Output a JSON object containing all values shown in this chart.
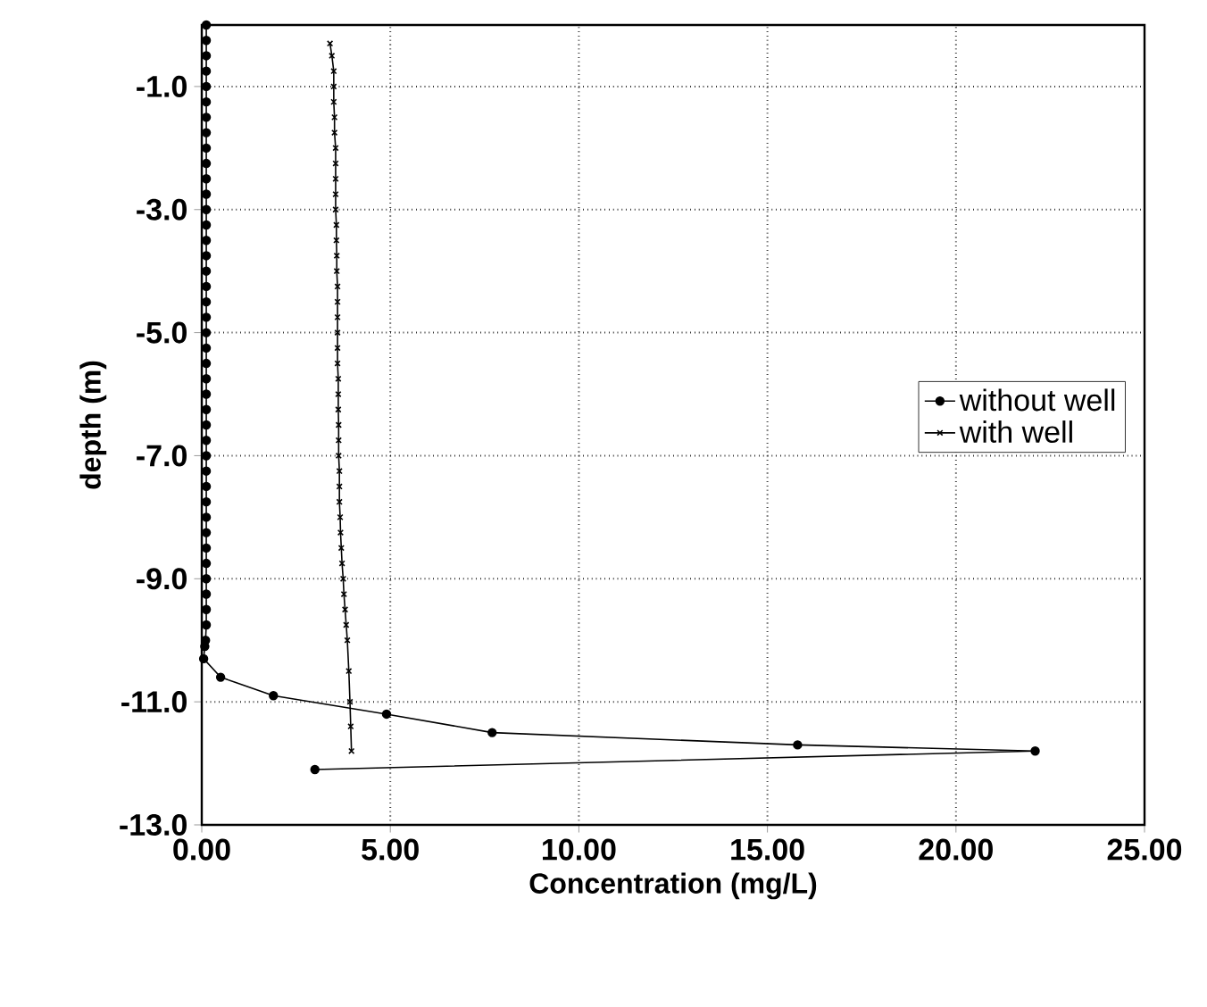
{
  "chart_data": {
    "type": "line",
    "xlabel": "Concentration (mg/L)",
    "ylabel": "depth (m)",
    "xlim": [
      0,
      25
    ],
    "ylim": [
      -13,
      0
    ],
    "xticks": [
      {
        "value": 0,
        "label": "0.00"
      },
      {
        "value": 5,
        "label": "5.00"
      },
      {
        "value": 10,
        "label": "10.00"
      },
      {
        "value": 15,
        "label": "15.00"
      },
      {
        "value": 20,
        "label": "20.00"
      },
      {
        "value": 25,
        "label": "25.00"
      }
    ],
    "yticks": [
      {
        "value": -13,
        "label": "-13.0"
      },
      {
        "value": -11,
        "label": "-11.0"
      },
      {
        "value": -9,
        "label": "-9.0"
      },
      {
        "value": -7,
        "label": "-7.0"
      },
      {
        "value": -5,
        "label": "-5.0"
      },
      {
        "value": -3,
        "label": "-3.0"
      },
      {
        "value": -1,
        "label": "-1.0"
      }
    ],
    "grid": true,
    "legend": "right",
    "line_style": "solid",
    "series": [
      {
        "name": "without well",
        "color": "#000000",
        "marker": "circle",
        "x": [
          0.12,
          0.12,
          0.12,
          0.12,
          0.12,
          0.12,
          0.12,
          0.12,
          0.12,
          0.12,
          0.12,
          0.12,
          0.12,
          0.12,
          0.12,
          0.12,
          0.12,
          0.12,
          0.12,
          0.12,
          0.12,
          0.12,
          0.12,
          0.12,
          0.12,
          0.12,
          0.12,
          0.12,
          0.12,
          0.12,
          0.12,
          0.12,
          0.12,
          0.12,
          0.12,
          0.12,
          0.12,
          0.12,
          0.12,
          0.12,
          0.1,
          0.08,
          0.05,
          0.5,
          1.9,
          4.9,
          7.7,
          15.8,
          22.1,
          3.0
        ],
        "values": [
          0,
          -0.25,
          -0.5,
          -0.75,
          -1,
          -1.25,
          -1.5,
          -1.75,
          -2,
          -2.25,
          -2.5,
          -2.75,
          -3,
          -3.25,
          -3.5,
          -3.75,
          -4,
          -4.25,
          -4.5,
          -4.75,
          -5,
          -5.25,
          -5.5,
          -5.75,
          -6,
          -6.25,
          -6.5,
          -6.75,
          -7,
          -7.25,
          -7.5,
          -7.75,
          -8,
          -8.25,
          -8.5,
          -8.75,
          -9,
          -9.25,
          -9.5,
          -9.75,
          -10,
          -10.1,
          -10.3,
          -10.6,
          -10.9,
          -11.2,
          -11.5,
          -11.7,
          -11.8,
          -12.1
        ]
      },
      {
        "name": "with well",
        "color": "#000000",
        "marker": "cross",
        "x": [
          3.4,
          3.45,
          3.5,
          3.5,
          3.5,
          3.52,
          3.52,
          3.55,
          3.55,
          3.55,
          3.55,
          3.55,
          3.57,
          3.57,
          3.58,
          3.58,
          3.6,
          3.6,
          3.6,
          3.6,
          3.6,
          3.6,
          3.62,
          3.62,
          3.62,
          3.63,
          3.63,
          3.63,
          3.65,
          3.65,
          3.65,
          3.67,
          3.68,
          3.7,
          3.72,
          3.75,
          3.77,
          3.8,
          3.83,
          3.86,
          3.9,
          3.93,
          3.95,
          3.97
        ],
        "values": [
          -0.3,
          -0.5,
          -0.75,
          -1,
          -1.25,
          -1.5,
          -1.75,
          -2,
          -2.25,
          -2.5,
          -2.75,
          -3,
          -3.25,
          -3.5,
          -3.75,
          -4,
          -4.25,
          -4.5,
          -4.75,
          -5,
          -5.25,
          -5.5,
          -5.75,
          -6,
          -6.25,
          -6.5,
          -6.75,
          -7,
          -7.25,
          -7.5,
          -7.75,
          -8,
          -8.25,
          -8.5,
          -8.75,
          -9,
          -9.25,
          -9.5,
          -9.75,
          -10,
          -10.5,
          -11,
          -11.4,
          -11.8
        ]
      }
    ]
  }
}
